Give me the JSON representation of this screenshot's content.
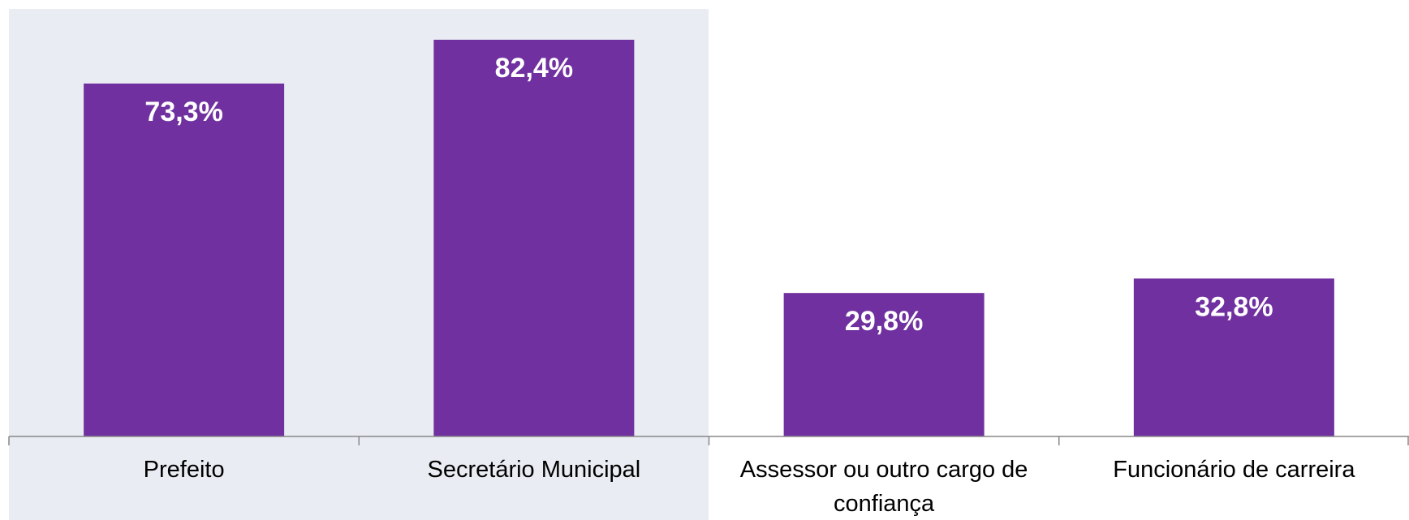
{
  "chart_data": {
    "type": "bar",
    "categories": [
      "Prefeito",
      "Secretário Municipal",
      "Assessor ou outro cargo de confiança",
      "Funcionário de carreira"
    ],
    "values": [
      73.3,
      82.4,
      29.8,
      32.8
    ],
    "value_labels": [
      "73,3%",
      "82,4%",
      "29,8%",
      "32,8%"
    ],
    "color": "#7030a0"
  }
}
